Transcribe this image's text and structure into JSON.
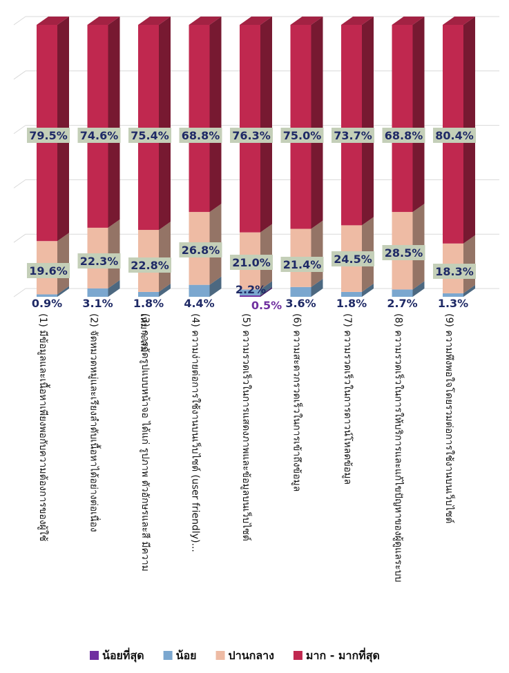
{
  "chart_data": {
    "type": "bar",
    "stacked": true,
    "three_d": true,
    "categories": [
      [
        "(1) มีข้อมูลและเนื้อหาเพียงพอกับความต้องการของผู้ใช้"
      ],
      [
        "(2) จัดหมวดหมู่และเรียงลำดับเนื้อหาได้อย่างต่อเนื่อง"
      ],
      [
        "(3) การจัดรูปแบบหน้าจอ ได้แก่ รูปภาพ ตัวอักษรและสี มีความ",
        "เหมาะสม"
      ],
      [
        "(4) ความง่ายต่อการใช้งานบนเว็บไซต์ (user friendly)..."
      ],
      [
        "(5) ความรวดเร็วในการแสดงภาพและข้อมูลบนเว็บไซต์"
      ],
      [
        "(6) ความสะดวกรวดเร็วในการเข้าถึงข้อมูล"
      ],
      [
        "(7) ความรวดเร็วในการดาวน์โหลดข้อมูล"
      ],
      [
        "(8) ความรวดเร็วในการให้บริการและแก้ไขปัญหาของผู้ดูแลระบบ"
      ],
      [
        "(9) ความพึงพอใจโดยรวมต่อการใช้งานบนเว็บไซต์"
      ]
    ],
    "series": [
      {
        "name": "น้อยที่สุด",
        "color": "#7030a0",
        "values": [
          0,
          0,
          0,
          0,
          0.5,
          0,
          0,
          0,
          0
        ]
      },
      {
        "name": "น้อย",
        "color": "#7ba7cf",
        "values": [
          0.9,
          3.1,
          1.8,
          4.4,
          2.2,
          3.6,
          1.8,
          2.7,
          1.3
        ]
      },
      {
        "name": "ปานกลาง",
        "color": "#eebba4",
        "values": [
          19.6,
          22.3,
          22.8,
          26.8,
          21.0,
          21.4,
          24.5,
          28.5,
          18.3
        ]
      },
      {
        "name": "มาก - มากที่สุด",
        "color": "#c0284f",
        "values": [
          79.5,
          74.6,
          75.4,
          68.8,
          76.3,
          75.0,
          73.7,
          68.8,
          80.4
        ]
      }
    ],
    "data_labels": {
      "น้อย": [
        "0.9%",
        "3.1%",
        "1.8%",
        "4.4%",
        "2.2%",
        "3.6%",
        "1.8%",
        "2.7%",
        "1.3%"
      ],
      "ปานกลาง": [
        "19.6%",
        "22.3%",
        "22.8%",
        "26.8%",
        "21.0%",
        "21.4%",
        "24.5%",
        "28.5%",
        "18.3%"
      ],
      "มาก - มากที่สุด": [
        "79.5%",
        "74.6%",
        "75.4%",
        "68.8%",
        "76.3%",
        "75.0%",
        "73.7%",
        "68.8%",
        "80.4%"
      ],
      "น้อยที่สุด": [
        "",
        "",
        "",
        "",
        "0.5%",
        "",
        "",
        "",
        ""
      ]
    },
    "ylim": [
      0,
      100
    ],
    "grid": true,
    "legend_position": "bottom",
    "title": "",
    "xlabel": "",
    "ylabel": ""
  }
}
